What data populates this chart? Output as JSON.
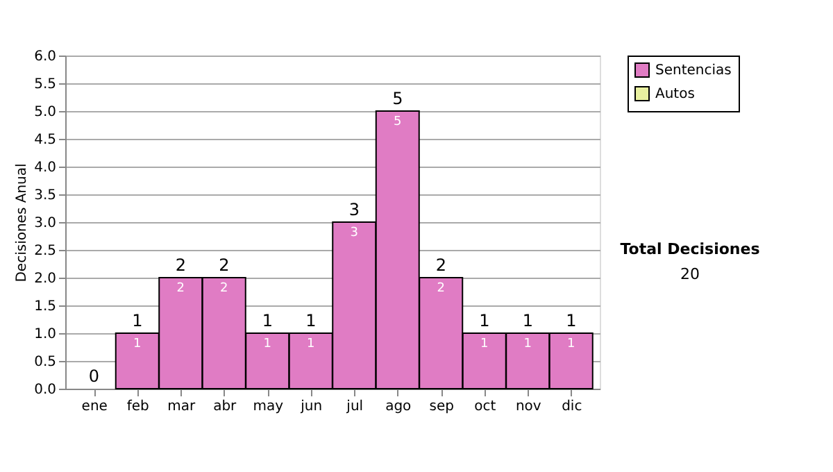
{
  "chart_data": {
    "type": "bar",
    "ylabel": "Decisiones Anual",
    "categories": [
      "ene",
      "feb",
      "mar",
      "abr",
      "may",
      "jun",
      "jul",
      "ago",
      "sep",
      "oct",
      "nov",
      "dic"
    ],
    "stacked": true,
    "series": [
      {
        "name": "Sentencias",
        "color": "#e07cc4",
        "values": [
          0,
          1,
          2,
          2,
          1,
          1,
          3,
          5,
          2,
          1,
          1,
          1
        ],
        "value_labels": [
          null,
          "1",
          "2",
          "2",
          "1",
          "1",
          "3",
          "5",
          "2",
          "1",
          "1",
          "1"
        ]
      },
      {
        "name": "Autos",
        "color": "#e8f0a0",
        "values": [
          0,
          0,
          0,
          0,
          0,
          0,
          0,
          0,
          0,
          0,
          0,
          0
        ]
      }
    ],
    "totals": [
      "0",
      "1",
      "2",
      "2",
      "1",
      "1",
      "3",
      "5",
      "2",
      "1",
      "1",
      "1"
    ],
    "ylim": [
      0,
      6
    ],
    "yticks": [
      {
        "value": 0,
        "label": "0.0"
      },
      {
        "value": 0.5,
        "label": "0.5"
      },
      {
        "value": 1,
        "label": "1.0"
      },
      {
        "value": 1.5,
        "label": "1.5"
      },
      {
        "value": 2,
        "label": "2.0"
      },
      {
        "value": 2.5,
        "label": "2.5"
      },
      {
        "value": 3,
        "label": "3.0"
      },
      {
        "value": 3.5,
        "label": "3.5"
      },
      {
        "value": 4,
        "label": "4.0"
      },
      {
        "value": 4.5,
        "label": "4.5"
      },
      {
        "value": 5,
        "label": "5.0"
      },
      {
        "value": 5.5,
        "label": "5.5"
      },
      {
        "value": 6,
        "label": "6.0"
      }
    ],
    "grid": "y",
    "legend": "right",
    "annotations": [
      "Total Decisiones",
      "20"
    ]
  }
}
